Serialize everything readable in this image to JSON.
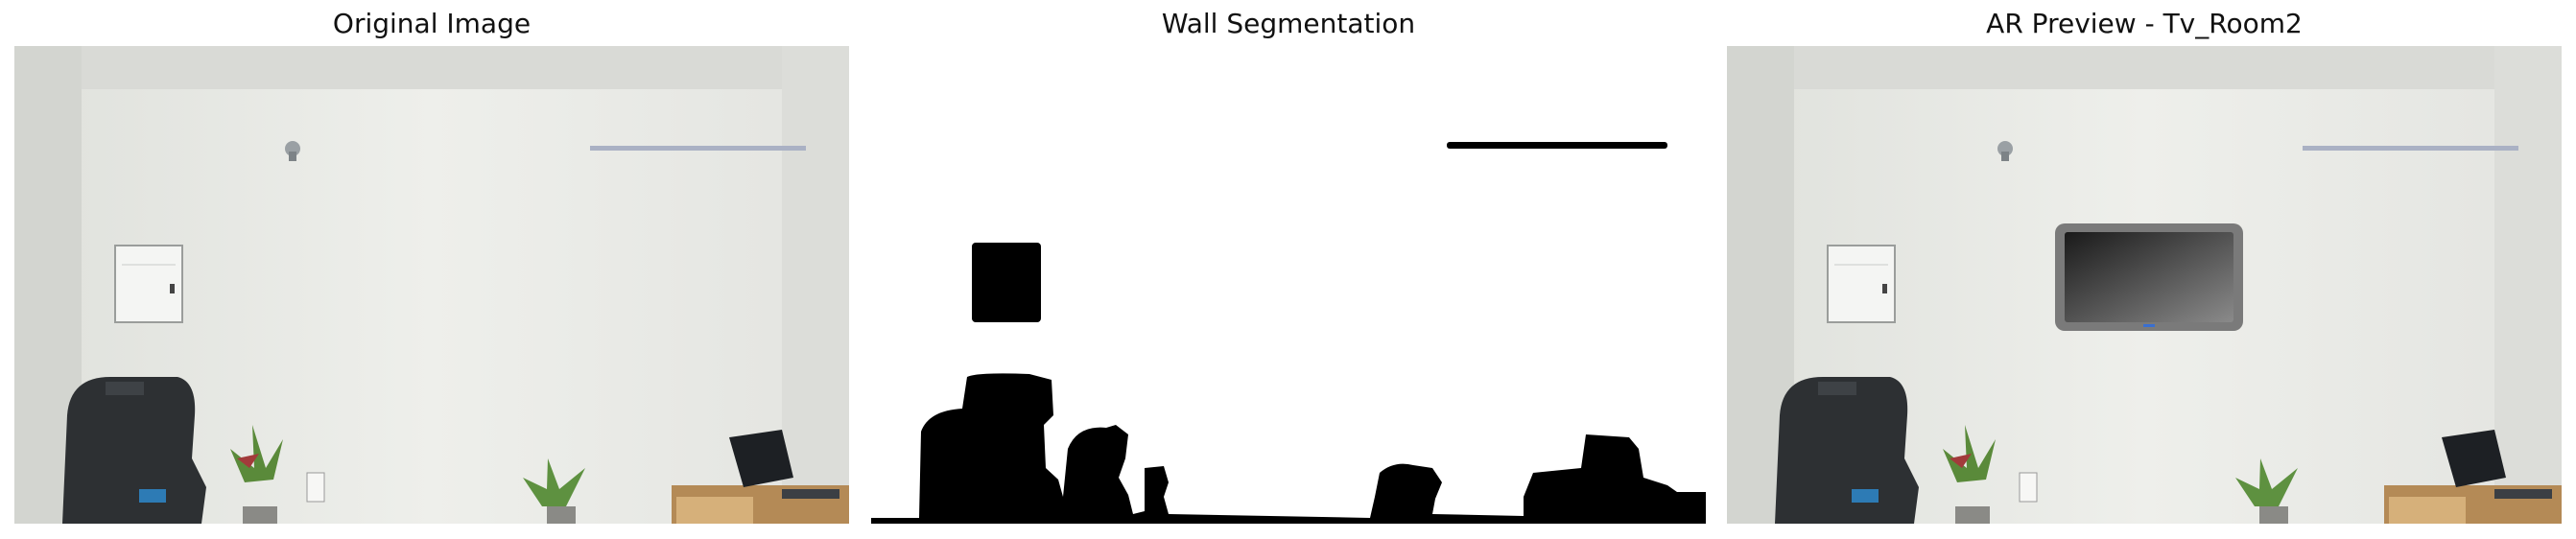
{
  "panels": [
    {
      "title": "Original Image"
    },
    {
      "title": "Wall Segmentation"
    },
    {
      "title": "AR Preview - Tv_Room2"
    }
  ],
  "colors": {
    "wall": "#e9eae6",
    "ceiling": "#dcddd9",
    "mask_background": "#ffffff",
    "mask_foreground": "#000000",
    "tv_bezel": "#7a7a7a"
  }
}
